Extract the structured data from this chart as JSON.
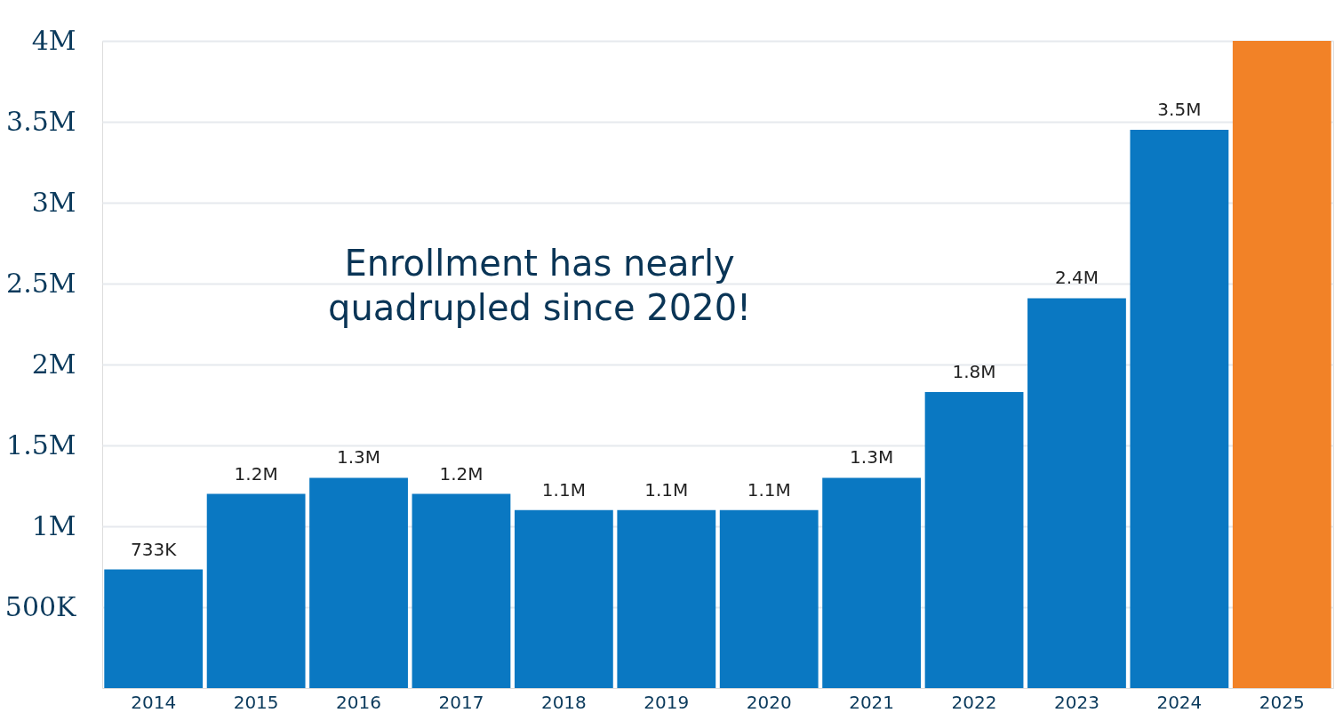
{
  "chart_data": {
    "type": "bar",
    "categories": [
      "2014",
      "2015",
      "2016",
      "2017",
      "2018",
      "2019",
      "2020",
      "2021",
      "2022",
      "2023",
      "2024",
      "2025"
    ],
    "values": [
      733000,
      1200000,
      1300000,
      1200000,
      1100000,
      1100000,
      1100000,
      1300000,
      1830000,
      2410000,
      3450000,
      4000000
    ],
    "colors": [
      "#0a78c2",
      "#0a78c2",
      "#0a78c2",
      "#0a78c2",
      "#0a78c2",
      "#0a78c2",
      "#0a78c2",
      "#0a78c2",
      "#0a78c2",
      "#0a78c2",
      "#0a78c2",
      "#f28227"
    ],
    "value_labels": [
      "733K",
      "1.2M",
      "1.3M",
      "1.2M",
      "1.1M",
      "1.1M",
      "1.1M",
      "1.3M",
      "1.8M",
      "2.4M",
      "3.5M",
      null
    ],
    "ylim": [
      0,
      4000000
    ],
    "yticks": [
      {
        "value": 500000,
        "label": "500K"
      },
      {
        "value": 1000000,
        "label": "1M"
      },
      {
        "value": 1500000,
        "label": "1.5M"
      },
      {
        "value": 2000000,
        "label": "2M"
      },
      {
        "value": 2500000,
        "label": "2.5M"
      },
      {
        "value": 3000000,
        "label": "3M"
      },
      {
        "value": 3500000,
        "label": "3.5M"
      },
      {
        "value": 4000000,
        "label": "4M"
      }
    ],
    "grid": "y",
    "annotations": [
      "Enrollment has nearly\nquadrupled since 2020!"
    ]
  }
}
